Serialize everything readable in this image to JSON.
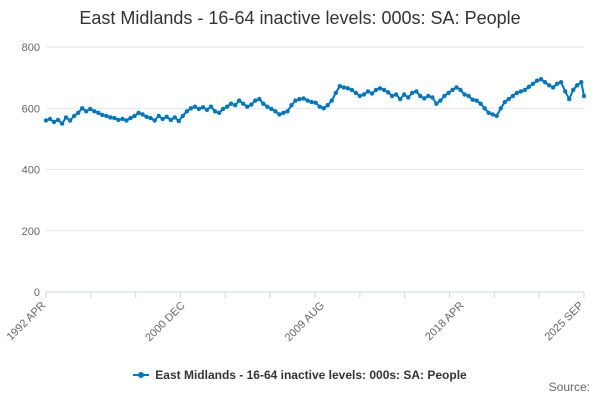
{
  "chart_data": {
    "type": "line",
    "title": "East Midlands - 16-64 inactive levels: 000s: SA: People",
    "ylim": [
      0,
      800
    ],
    "y_ticks": [
      "0",
      "200",
      "400",
      "600",
      "800"
    ],
    "x_tick_labels": [
      "1992 APR",
      "2000 DEC",
      "2009 AUG",
      "2018 APR",
      "2025 SEP"
    ],
    "x_tick_positions": [
      1992.25,
      2000.92,
      2009.58,
      2018.25,
      2025.67
    ],
    "x_range": [
      1992.25,
      2025.67
    ],
    "grid": true,
    "legend_position": "bottom",
    "series": [
      {
        "name": "East Midlands - 16-64 inactive levels: 000s: SA: People",
        "color": "#0077bb",
        "points": [
          [
            1992.25,
            560
          ],
          [
            1992.5,
            565
          ],
          [
            1992.75,
            555
          ],
          [
            1993.0,
            562
          ],
          [
            1993.25,
            550
          ],
          [
            1993.5,
            570
          ],
          [
            1993.75,
            560
          ],
          [
            1994.0,
            575
          ],
          [
            1994.25,
            585
          ],
          [
            1994.5,
            600
          ],
          [
            1994.75,
            590
          ],
          [
            1995.0,
            598
          ],
          [
            1995.25,
            590
          ],
          [
            1995.5,
            585
          ],
          [
            1995.75,
            578
          ],
          [
            1996.0,
            575
          ],
          [
            1996.25,
            570
          ],
          [
            1996.5,
            568
          ],
          [
            1996.75,
            562
          ],
          [
            1997.0,
            565
          ],
          [
            1997.25,
            560
          ],
          [
            1997.5,
            568
          ],
          [
            1997.75,
            575
          ],
          [
            1998.0,
            585
          ],
          [
            1998.25,
            580
          ],
          [
            1998.5,
            572
          ],
          [
            1998.75,
            568
          ],
          [
            1999.0,
            560
          ],
          [
            1999.25,
            575
          ],
          [
            1999.5,
            565
          ],
          [
            1999.75,
            572
          ],
          [
            2000.0,
            562
          ],
          [
            2000.25,
            570
          ],
          [
            2000.5,
            558
          ],
          [
            2000.75,
            575
          ],
          [
            2001.0,
            590
          ],
          [
            2001.25,
            600
          ],
          [
            2001.5,
            605
          ],
          [
            2001.75,
            598
          ],
          [
            2002.0,
            603
          ],
          [
            2002.25,
            595
          ],
          [
            2002.5,
            605
          ],
          [
            2002.75,
            590
          ],
          [
            2003.0,
            585
          ],
          [
            2003.25,
            598
          ],
          [
            2003.5,
            605
          ],
          [
            2003.75,
            615
          ],
          [
            2004.0,
            610
          ],
          [
            2004.25,
            625
          ],
          [
            2004.5,
            615
          ],
          [
            2004.75,
            605
          ],
          [
            2005.0,
            612
          ],
          [
            2005.25,
            625
          ],
          [
            2005.5,
            630
          ],
          [
            2005.75,
            615
          ],
          [
            2006.0,
            605
          ],
          [
            2006.25,
            598
          ],
          [
            2006.5,
            590
          ],
          [
            2006.75,
            580
          ],
          [
            2007.0,
            585
          ],
          [
            2007.25,
            590
          ],
          [
            2007.5,
            610
          ],
          [
            2007.75,
            625
          ],
          [
            2008.0,
            630
          ],
          [
            2008.25,
            632
          ],
          [
            2008.5,
            625
          ],
          [
            2008.75,
            620
          ],
          [
            2009.0,
            618
          ],
          [
            2009.25,
            605
          ],
          [
            2009.5,
            600
          ],
          [
            2009.75,
            610
          ],
          [
            2010.0,
            625
          ],
          [
            2010.25,
            650
          ],
          [
            2010.5,
            672
          ],
          [
            2010.75,
            668
          ],
          [
            2011.0,
            665
          ],
          [
            2011.25,
            660
          ],
          [
            2011.5,
            650
          ],
          [
            2011.75,
            640
          ],
          [
            2012.0,
            645
          ],
          [
            2012.25,
            655
          ],
          [
            2012.5,
            648
          ],
          [
            2012.75,
            660
          ],
          [
            2013.0,
            665
          ],
          [
            2013.25,
            660
          ],
          [
            2013.5,
            652
          ],
          [
            2013.75,
            640
          ],
          [
            2014.0,
            645
          ],
          [
            2014.25,
            630
          ],
          [
            2014.5,
            645
          ],
          [
            2014.75,
            635
          ],
          [
            2015.0,
            650
          ],
          [
            2015.25,
            655
          ],
          [
            2015.5,
            640
          ],
          [
            2015.75,
            632
          ],
          [
            2016.0,
            640
          ],
          [
            2016.25,
            635
          ],
          [
            2016.5,
            615
          ],
          [
            2016.75,
            625
          ],
          [
            2017.0,
            640
          ],
          [
            2017.25,
            650
          ],
          [
            2017.5,
            660
          ],
          [
            2017.75,
            668
          ],
          [
            2018.0,
            660
          ],
          [
            2018.25,
            645
          ],
          [
            2018.5,
            640
          ],
          [
            2018.75,
            628
          ],
          [
            2019.0,
            625
          ],
          [
            2019.25,
            615
          ],
          [
            2019.5,
            600
          ],
          [
            2019.75,
            585
          ],
          [
            2020.0,
            580
          ],
          [
            2020.25,
            575
          ],
          [
            2020.5,
            600
          ],
          [
            2020.75,
            620
          ],
          [
            2021.0,
            630
          ],
          [
            2021.25,
            640
          ],
          [
            2021.5,
            650
          ],
          [
            2021.75,
            655
          ],
          [
            2022.0,
            660
          ],
          [
            2022.25,
            670
          ],
          [
            2022.5,
            680
          ],
          [
            2022.75,
            690
          ],
          [
            2023.0,
            695
          ],
          [
            2023.25,
            685
          ],
          [
            2023.5,
            675
          ],
          [
            2023.75,
            668
          ],
          [
            2024.0,
            680
          ],
          [
            2024.25,
            685
          ],
          [
            2024.5,
            655
          ],
          [
            2024.75,
            630
          ],
          [
            2025.0,
            660
          ],
          [
            2025.25,
            675
          ],
          [
            2025.5,
            685
          ],
          [
            2025.67,
            640
          ]
        ]
      }
    ]
  },
  "legend": {
    "label": "East Midlands - 16-64 inactive levels: 000s: SA: People"
  },
  "footer": {
    "source_label": "Source:"
  }
}
